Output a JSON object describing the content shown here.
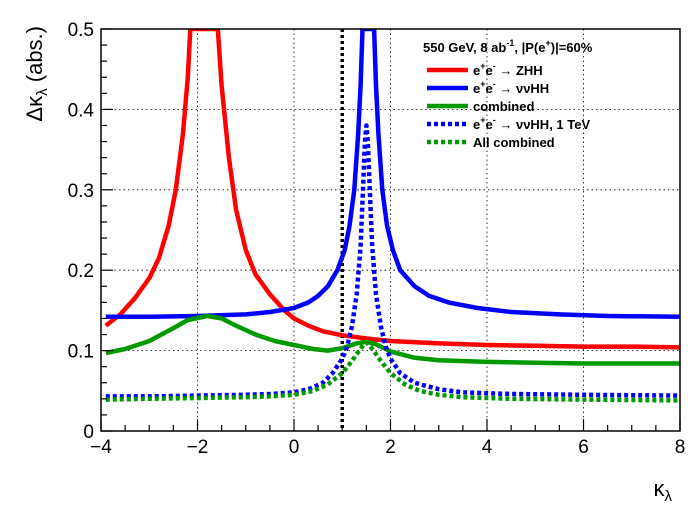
{
  "chart_data": {
    "type": "line",
    "title": "",
    "xlabel": "κλ",
    "ylabel": "Δκλ (abs.)",
    "xlim": [
      -4,
      8
    ],
    "ylim": [
      0,
      0.5
    ],
    "x_ticks": [
      -4,
      -2,
      0,
      2,
      4,
      6,
      8
    ],
    "x_tick_labels": [
      "−4",
      "−2",
      "0",
      "2",
      "4",
      "6",
      "8"
    ],
    "y_ticks": [
      0,
      0.1,
      0.2,
      0.3,
      0.4,
      0.5
    ],
    "y_tick_labels": [
      "0",
      "0.1",
      "0.2",
      "0.3",
      "0.4",
      "0.5"
    ],
    "grid": true,
    "vline": {
      "x": 1,
      "style": "dotted",
      "color": "#000000"
    },
    "legend_title": "550 GeV, 8 ab-1, |P(e+)|=60%",
    "legend_position": "top-right",
    "series": [
      {
        "name": "e+e- → ZHH",
        "color": "#ff0000",
        "style": "solid",
        "points": [
          [
            -3.9,
            0.131
          ],
          [
            -3.6,
            0.145
          ],
          [
            -3.3,
            0.165
          ],
          [
            -3.0,
            0.19
          ],
          [
            -2.8,
            0.215
          ],
          [
            -2.6,
            0.255
          ],
          [
            -2.45,
            0.3
          ],
          [
            -2.3,
            0.37
          ],
          [
            -2.2,
            0.44
          ],
          [
            -2.15,
            0.5
          ],
          [
            -1.58,
            0.5
          ],
          [
            -1.5,
            0.43
          ],
          [
            -1.35,
            0.34
          ],
          [
            -1.2,
            0.275
          ],
          [
            -1.0,
            0.225
          ],
          [
            -0.8,
            0.195
          ],
          [
            -0.5,
            0.17
          ],
          [
            -0.2,
            0.15
          ],
          [
            0.0,
            0.14
          ],
          [
            0.3,
            0.131
          ],
          [
            0.6,
            0.124
          ],
          [
            1.0,
            0.119
          ],
          [
            1.5,
            0.115
          ],
          [
            2.0,
            0.112
          ],
          [
            3.0,
            0.109
          ],
          [
            4.0,
            0.107
          ],
          [
            5.0,
            0.106
          ],
          [
            6.0,
            0.105
          ],
          [
            7.0,
            0.105
          ],
          [
            8.0,
            0.104
          ]
        ]
      },
      {
        "name": "e+e- → ννHH",
        "color": "#0000ff",
        "style": "solid",
        "points": [
          [
            -3.9,
            0.142
          ],
          [
            -3.0,
            0.142
          ],
          [
            -2.0,
            0.143
          ],
          [
            -1.0,
            0.145
          ],
          [
            -0.5,
            0.148
          ],
          [
            0.0,
            0.153
          ],
          [
            0.3,
            0.16
          ],
          [
            0.5,
            0.168
          ],
          [
            0.7,
            0.18
          ],
          [
            0.9,
            0.2
          ],
          [
            1.05,
            0.225
          ],
          [
            1.15,
            0.255
          ],
          [
            1.25,
            0.3
          ],
          [
            1.33,
            0.37
          ],
          [
            1.38,
            0.43
          ],
          [
            1.42,
            0.5
          ],
          [
            1.66,
            0.5
          ],
          [
            1.7,
            0.43
          ],
          [
            1.75,
            0.37
          ],
          [
            1.83,
            0.3
          ],
          [
            1.93,
            0.255
          ],
          [
            2.05,
            0.225
          ],
          [
            2.2,
            0.2
          ],
          [
            2.5,
            0.18
          ],
          [
            2.8,
            0.168
          ],
          [
            3.2,
            0.16
          ],
          [
            3.8,
            0.153
          ],
          [
            4.5,
            0.148
          ],
          [
            5.5,
            0.145
          ],
          [
            6.5,
            0.143
          ],
          [
            8.0,
            0.142
          ]
        ]
      },
      {
        "name": "combined",
        "color": "#009900",
        "style": "solid",
        "points": [
          [
            -3.9,
            0.097
          ],
          [
            -3.5,
            0.102
          ],
          [
            -3.0,
            0.112
          ],
          [
            -2.5,
            0.128
          ],
          [
            -2.2,
            0.138
          ],
          [
            -1.8,
            0.143
          ],
          [
            -1.5,
            0.14
          ],
          [
            -1.2,
            0.131
          ],
          [
            -0.8,
            0.12
          ],
          [
            -0.4,
            0.112
          ],
          [
            0.0,
            0.107
          ],
          [
            0.4,
            0.102
          ],
          [
            0.7,
            0.1
          ],
          [
            1.0,
            0.103
          ],
          [
            1.3,
            0.109
          ],
          [
            1.5,
            0.111
          ],
          [
            1.7,
            0.108
          ],
          [
            2.0,
            0.099
          ],
          [
            2.5,
            0.091
          ],
          [
            3.0,
            0.088
          ],
          [
            4.0,
            0.086
          ],
          [
            5.0,
            0.085
          ],
          [
            6.0,
            0.084
          ],
          [
            7.0,
            0.084
          ],
          [
            8.0,
            0.084
          ]
        ]
      },
      {
        "name": "e+e- → ννHH, 1 TeV",
        "color": "#0000ff",
        "style": "dotted",
        "points": [
          [
            -3.9,
            0.043
          ],
          [
            -3.0,
            0.043
          ],
          [
            -2.0,
            0.044
          ],
          [
            -1.0,
            0.045
          ],
          [
            -0.5,
            0.046
          ],
          [
            0.0,
            0.048
          ],
          [
            0.3,
            0.052
          ],
          [
            0.6,
            0.06
          ],
          [
            0.8,
            0.072
          ],
          [
            1.0,
            0.09
          ],
          [
            1.1,
            0.105
          ],
          [
            1.2,
            0.13
          ],
          [
            1.3,
            0.17
          ],
          [
            1.38,
            0.23
          ],
          [
            1.43,
            0.3
          ],
          [
            1.47,
            0.36
          ],
          [
            1.5,
            0.38
          ],
          [
            1.53,
            0.36
          ],
          [
            1.57,
            0.3
          ],
          [
            1.62,
            0.23
          ],
          [
            1.7,
            0.17
          ],
          [
            1.8,
            0.13
          ],
          [
            1.9,
            0.105
          ],
          [
            2.0,
            0.09
          ],
          [
            2.2,
            0.072
          ],
          [
            2.5,
            0.06
          ],
          [
            3.0,
            0.052
          ],
          [
            3.5,
            0.048
          ],
          [
            4.5,
            0.046
          ],
          [
            6.0,
            0.045
          ],
          [
            8.0,
            0.044
          ]
        ]
      },
      {
        "name": "All combined",
        "color": "#009900",
        "style": "dotted",
        "points": [
          [
            -3.9,
            0.039
          ],
          [
            -3.0,
            0.04
          ],
          [
            -2.0,
            0.041
          ],
          [
            -1.0,
            0.042
          ],
          [
            -0.5,
            0.043
          ],
          [
            0.0,
            0.045
          ],
          [
            0.4,
            0.05
          ],
          [
            0.7,
            0.058
          ],
          [
            1.0,
            0.072
          ],
          [
            1.2,
            0.087
          ],
          [
            1.35,
            0.1
          ],
          [
            1.45,
            0.108
          ],
          [
            1.5,
            0.11
          ],
          [
            1.55,
            0.108
          ],
          [
            1.65,
            0.1
          ],
          [
            1.8,
            0.087
          ],
          [
            2.0,
            0.072
          ],
          [
            2.3,
            0.058
          ],
          [
            2.6,
            0.05
          ],
          [
            3.0,
            0.045
          ],
          [
            3.5,
            0.042
          ],
          [
            4.5,
            0.04
          ],
          [
            6.0,
            0.039
          ],
          [
            8.0,
            0.038
          ]
        ]
      }
    ]
  },
  "legend": {
    "title_main": "550 GeV, 8 ab",
    "title_sup1": "-1",
    "title_rest": ", |P(e",
    "title_sup2": "+",
    "title_end": ")|=60%",
    "entries": [
      {
        "e1": "e",
        "s1": "+",
        "e2": "e",
        "s2": "-",
        "rest": " → ZHH"
      },
      {
        "e1": "e",
        "s1": "+",
        "e2": "e",
        "s2": "-",
        "rest": " → ννHH"
      },
      {
        "plain": "combined"
      },
      {
        "e1": "e",
        "s1": "+",
        "e2": "e",
        "s2": "-",
        "rest": " → ννHH, 1 TeV"
      },
      {
        "plain": "All combined"
      }
    ]
  },
  "axes": {
    "x_title_main": "κ",
    "x_title_sub": "λ",
    "y_title_pre": "Δκ",
    "y_title_sub": "λ",
    "y_title_post": " (abs.)"
  }
}
